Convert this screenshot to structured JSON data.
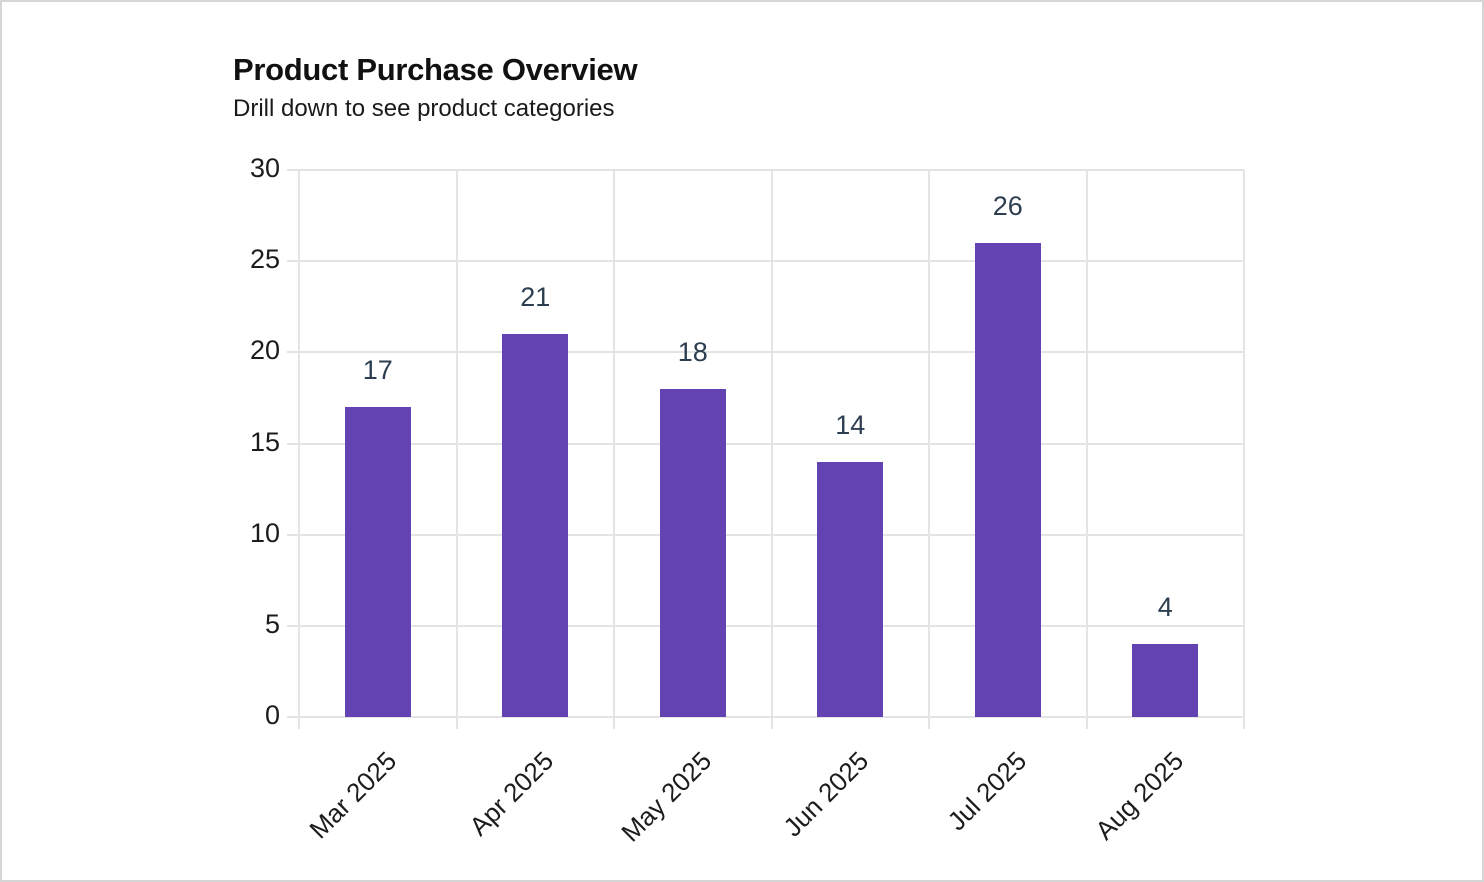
{
  "header": {
    "title": "Product Purchase Overview",
    "subtitle": "Drill down to see product categories"
  },
  "colors": {
    "bar": "#6342b1",
    "grid": "#e4e4e4",
    "data_label": "#2c3e50"
  },
  "axis": {
    "y_ticks": [
      "0",
      "5",
      "10",
      "15",
      "20",
      "25",
      "30"
    ],
    "x_ticks": [
      "Mar 2025",
      "Apr 2025",
      "May 2025",
      "Jun 2025",
      "Jul 2025",
      "Aug 2025"
    ]
  },
  "data_labels": [
    "17",
    "21",
    "18",
    "14",
    "26",
    "4"
  ],
  "chart_data": {
    "type": "bar",
    "title": "Product Purchase Overview",
    "subtitle": "Drill down to see product categories",
    "categories": [
      "Mar 2025",
      "Apr 2025",
      "May 2025",
      "Jun 2025",
      "Jul 2025",
      "Aug 2025"
    ],
    "values": [
      17,
      21,
      18,
      14,
      26,
      4
    ],
    "xlabel": "",
    "ylabel": "",
    "ylim": [
      0,
      30
    ],
    "yticks": [
      0,
      5,
      10,
      15,
      20,
      25,
      30
    ],
    "grid": true,
    "legend": false,
    "data_labels": true,
    "x_tick_rotation": -45
  }
}
